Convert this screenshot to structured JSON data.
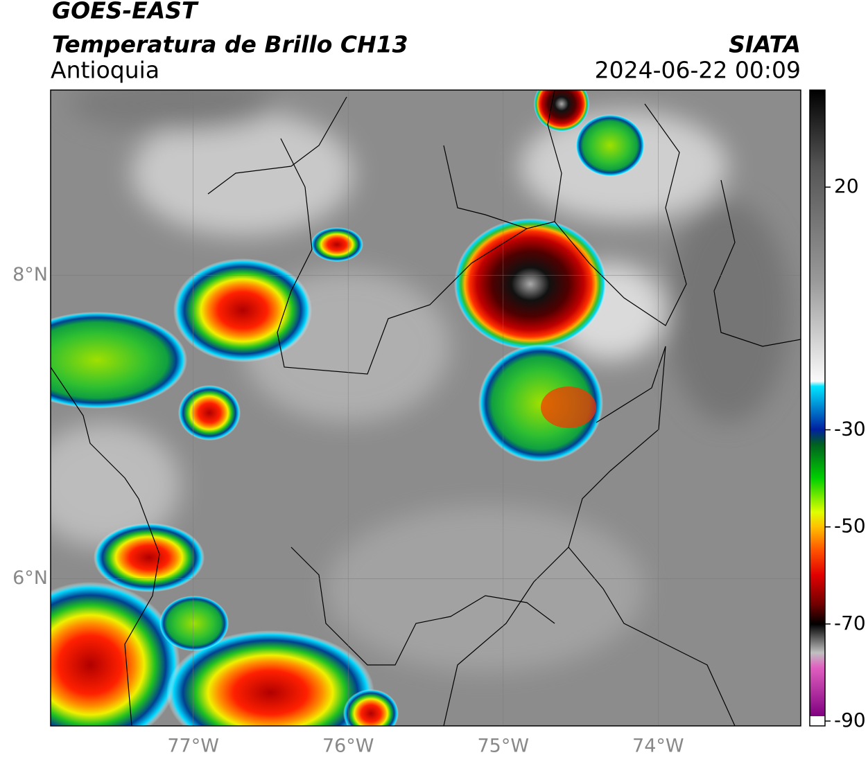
{
  "chart_data": {
    "type": "map",
    "title": "GOES-EAST",
    "subtitle": "Temperatura de Brillo CH13",
    "region": "Antioquia",
    "source": "SIATA",
    "timestamp": "2024-06-22 00:09",
    "xlim": [
      -77.92,
      -73.08
    ],
    "ylim": [
      5.03,
      9.22
    ],
    "xticks": [
      {
        "value": -77,
        "label": "77°W"
      },
      {
        "value": -76,
        "label": "76°W"
      },
      {
        "value": -75,
        "label": "75°W"
      },
      {
        "value": -74,
        "label": "74°W"
      }
    ],
    "yticks": [
      {
        "value": 6,
        "label": "6°N"
      },
      {
        "value": 8,
        "label": "8°N"
      }
    ],
    "grid": true,
    "colorbar": {
      "lim": [
        -91,
        40
      ],
      "ticks": [
        20,
        -30,
        -50,
        -70,
        -90
      ]
    }
  }
}
